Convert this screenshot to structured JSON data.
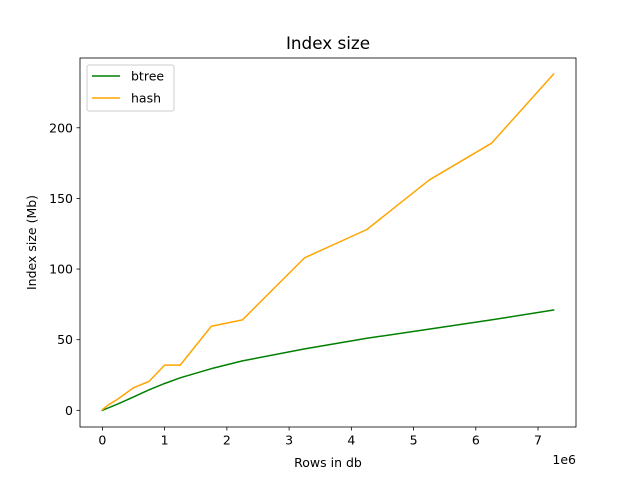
{
  "chart_data": {
    "type": "line",
    "title": "Index size",
    "xlabel": "Rows in db",
    "ylabel": "Index size (Mb)",
    "x_offset_label": "1e6",
    "xlim": [
      -0.36,
      7.61
    ],
    "ylim": [
      -11.8,
      249.4
    ],
    "x_ticks": [
      0,
      1,
      2,
      3,
      4,
      5,
      6,
      7
    ],
    "x_tick_labels": [
      "0",
      "1",
      "2",
      "3",
      "4",
      "5",
      "6",
      "7"
    ],
    "y_ticks": [
      0,
      50,
      100,
      150,
      200
    ],
    "y_tick_labels": [
      "0",
      "50",
      "100",
      "150",
      "200"
    ],
    "grid": false,
    "legend_position": "upper-left",
    "series": [
      {
        "name": "btree",
        "color": "#008000",
        "x": [
          0,
          0.25,
          0.5,
          0.75,
          1.0,
          1.25,
          1.75,
          2.25,
          3.25,
          4.25,
          5.25,
          6.25,
          7.25
        ],
        "y": [
          0,
          4.5,
          9.5,
          14.5,
          19,
          23,
          29.5,
          35,
          43.5,
          51,
          57.5,
          64,
          71
        ]
      },
      {
        "name": "hash",
        "color": "#ffa500",
        "x": [
          0,
          0.1,
          0.25,
          0.5,
          0.75,
          1.0,
          1.25,
          1.75,
          2.25,
          3.25,
          4.25,
          5.25,
          6.25,
          7.25
        ],
        "y": [
          0.5,
          4,
          8,
          16,
          20.5,
          32,
          32,
          59.5,
          64,
          108,
          128,
          163,
          189,
          238
        ]
      }
    ]
  }
}
